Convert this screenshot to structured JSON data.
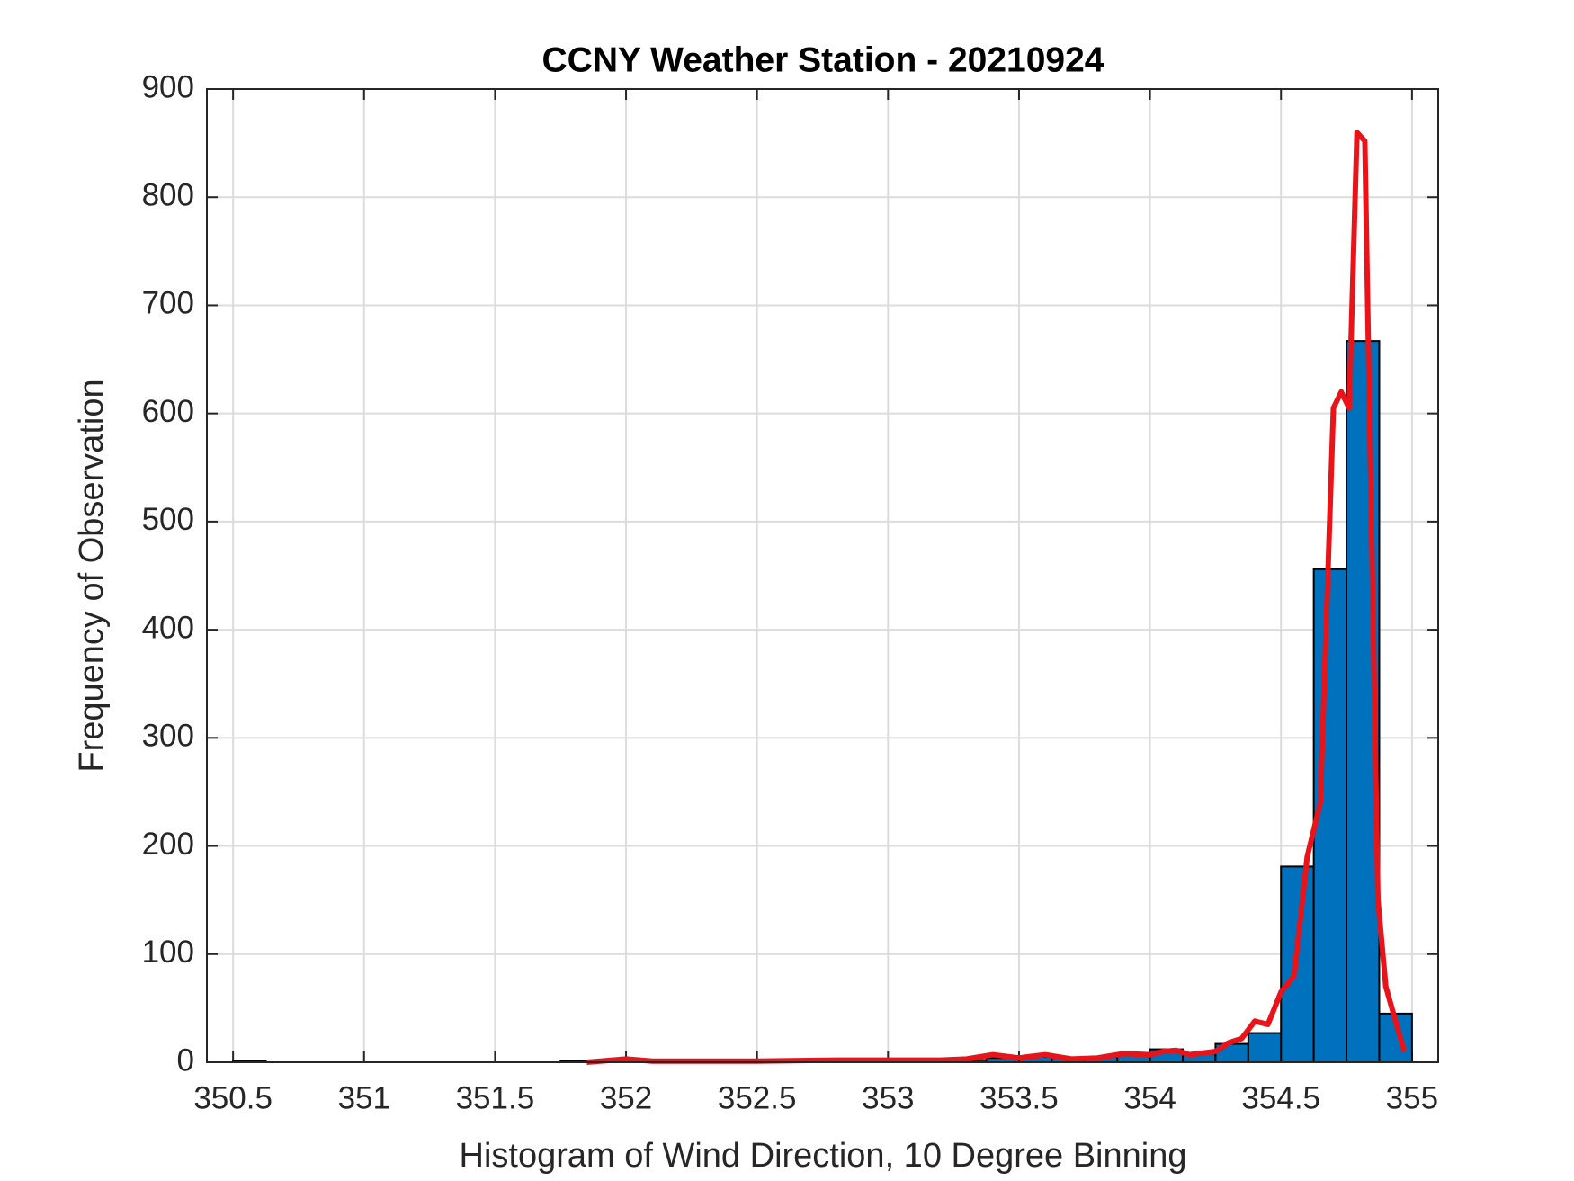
{
  "chart_data": {
    "type": "histogram",
    "title": "CCNY Weather Station - 20210924",
    "xlabel": "Histogram of Wind Direction, 10 Degree Binning",
    "ylabel": "Frequency of Observation",
    "bins": [
      350.5,
      350.625,
      350.75,
      350.875,
      351,
      351.125,
      351.25,
      351.375,
      351.5,
      351.625,
      351.75,
      351.875,
      352,
      352.125,
      352.25,
      352.375,
      352.5,
      352.625,
      352.75,
      352.875,
      353,
      353.125,
      353.25,
      353.375,
      353.5,
      353.625,
      353.75,
      353.875,
      354,
      354.125,
      354.25,
      354.375,
      354.5,
      354.625,
      354.75,
      354.875,
      355
    ],
    "counts": [
      1,
      0,
      0,
      0,
      0,
      0,
      0,
      0,
      0,
      0,
      1,
      1,
      2,
      1,
      1,
      1,
      1,
      1,
      1,
      1,
      1,
      1,
      2,
      4,
      5,
      4,
      5,
      7,
      12,
      8,
      17,
      27,
      181,
      456,
      667,
      45
    ],
    "color": "#0072bd",
    "edgecolor": "#000000",
    "line": {
      "color": "#e8141a",
      "x": [
        351.85,
        352.0,
        352.1,
        352.5,
        352.8,
        353.0,
        353.2,
        353.3,
        353.4,
        353.5,
        353.6,
        353.7,
        353.8,
        353.9,
        354.0,
        354.05,
        354.1,
        354.15,
        354.25,
        354.3,
        354.35,
        354.4,
        354.45,
        354.5,
        354.55,
        354.6,
        354.65,
        354.7,
        354.73,
        354.76,
        354.79,
        354.82,
        354.87,
        354.9,
        354.97
      ],
      "y": [
        0,
        3,
        1,
        1,
        2,
        2,
        2,
        3,
        7,
        4,
        7,
        3,
        4,
        8,
        7,
        10,
        11,
        7,
        10,
        18,
        22,
        38,
        35,
        65,
        80,
        190,
        240,
        605,
        620,
        605,
        860,
        852,
        150,
        70,
        10
      ]
    },
    "xlim": [
      350.4,
      355.1
    ],
    "xticks": [
      350.5,
      351,
      351.5,
      352,
      352.5,
      353,
      353.5,
      354,
      354.5,
      355
    ],
    "ylim": [
      0,
      900
    ],
    "yticks": [
      0,
      100,
      200,
      300,
      400,
      500,
      600,
      700,
      800,
      900
    ],
    "grid": true
  }
}
